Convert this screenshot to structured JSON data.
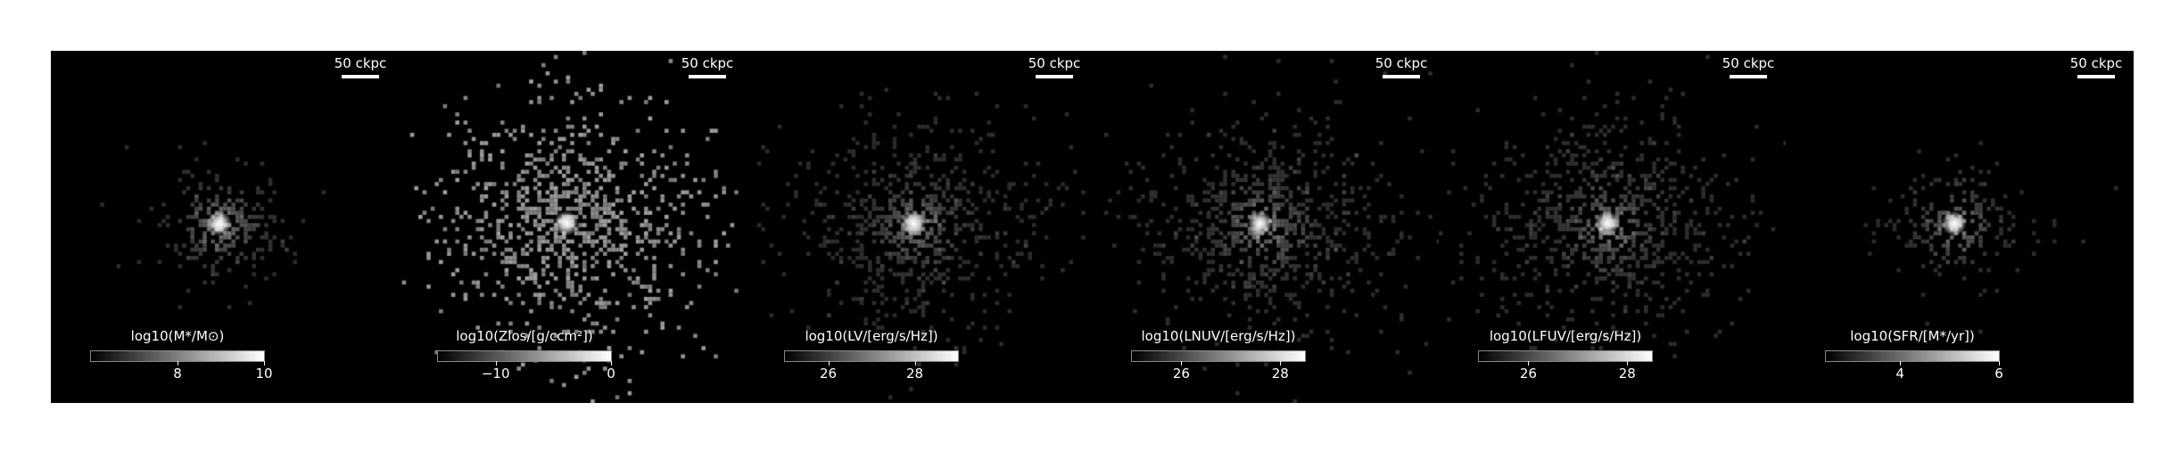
{
  "panels": [
    {
      "scalebar": "50 ckpc",
      "colorbar_label": "log10(M*/M⊙)",
      "ticks": [
        {
          "value": 8,
          "label": "8"
        },
        {
          "value": 10,
          "label": "10"
        }
      ],
      "range": [
        6,
        10
      ],
      "map": {
        "spread": 0.15,
        "n": 260,
        "brightness": 0.35,
        "fill": 0.0
      }
    },
    {
      "scalebar": "50 ckpc",
      "colorbar_label": "log10(Zlos/[g/ccm²])",
      "ticks": [
        {
          "value": -10,
          "label": "−10"
        },
        {
          "value": 0,
          "label": "0"
        }
      ],
      "range": [
        -15,
        0
      ],
      "map": {
        "spread": 0.34,
        "n": 900,
        "brightness": 0.55,
        "fill": 0.55
      }
    },
    {
      "scalebar": "50 ckpc",
      "colorbar_label": "log10(LV/[erg/s/Hz])",
      "ticks": [
        {
          "value": 26,
          "label": "26"
        },
        {
          "value": 28,
          "label": "28"
        }
      ],
      "range": [
        25,
        29
      ],
      "map": {
        "spread": 0.3,
        "n": 700,
        "brightness": 0.35,
        "fill": 0.0
      }
    },
    {
      "scalebar": "50 ckpc",
      "colorbar_label": "log10(LNUV/[erg/s/Hz])",
      "ticks": [
        {
          "value": 26,
          "label": "26"
        },
        {
          "value": 28,
          "label": "28"
        }
      ],
      "range": [
        25,
        28.5
      ],
      "map": {
        "spread": 0.32,
        "n": 800,
        "brightness": 0.38,
        "fill": 0.0
      }
    },
    {
      "scalebar": "50 ckpc",
      "colorbar_label": "log10(LFUV/[erg/s/Hz])",
      "ticks": [
        {
          "value": 26,
          "label": "26"
        },
        {
          "value": 28,
          "label": "28"
        }
      ],
      "range": [
        25,
        28.5
      ],
      "map": {
        "spread": 0.32,
        "n": 800,
        "brightness": 0.38,
        "fill": 0.0
      }
    },
    {
      "scalebar": "50 ckpc",
      "colorbar_label": "log10(SFR/[M*/yr])",
      "ticks": [
        {
          "value": 4,
          "label": "4"
        },
        {
          "value": 6,
          "label": "6"
        }
      ],
      "range": [
        2.5,
        6
      ],
      "map": {
        "spread": 0.16,
        "n": 220,
        "brightness": 0.3,
        "fill": 0.0
      }
    }
  ]
}
